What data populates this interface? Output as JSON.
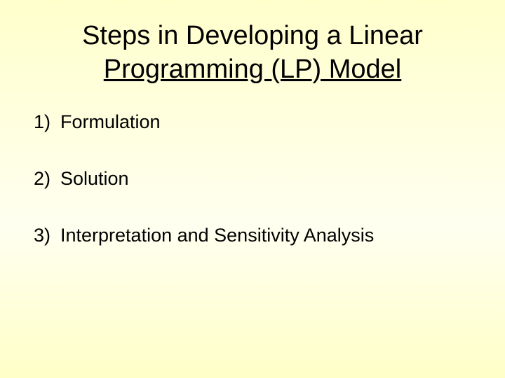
{
  "slide": {
    "title_line1": "Steps in Developing a Linear",
    "title_line2": "Programming (LP) Model",
    "title_fontsize": 38,
    "title_color": "#000000",
    "background_gradient_top": "#ffffcc",
    "background_gradient_bottom": "#ffffc8",
    "items": [
      {
        "number": "1)",
        "text": "Formulation"
      },
      {
        "number": "2)",
        "text": "Solution"
      },
      {
        "number": "3)",
        "text": "Interpretation and Sensitivity Analysis"
      }
    ],
    "item_fontsize": 27,
    "item_color": "#000000",
    "item_spacing": 50
  }
}
